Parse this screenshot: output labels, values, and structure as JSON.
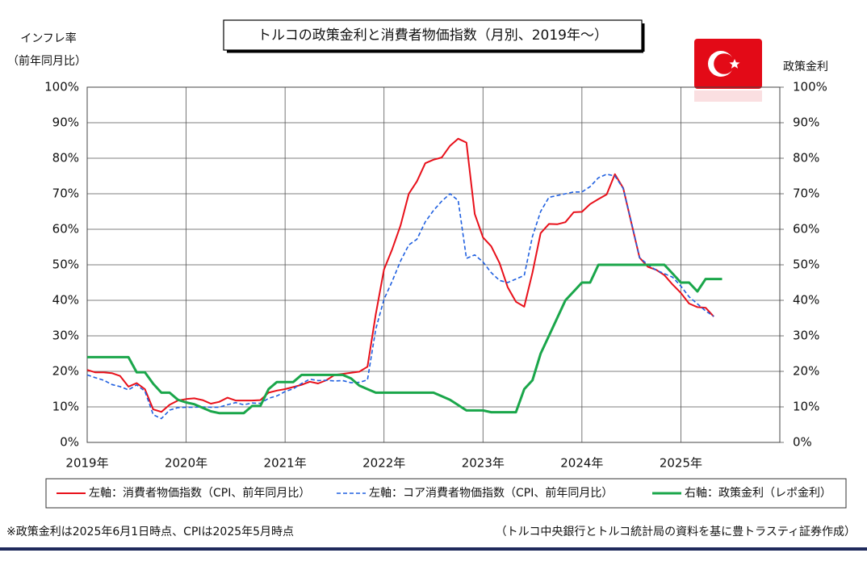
{
  "chart_data": {
    "type": "line",
    "title": "トルコの政策金利と消費者物価指数（月別、2019年～）",
    "y_label_lines": [
      "インフレ率",
      "（前年同月比）"
    ],
    "y2_label": "政策金利",
    "note": "※政策金利は2025年6月1日時点、CPIは2025年5月時点",
    "source": "（トルコ中央銀行とトルコ統計局の資料を基に豊トラスティ証券作成）",
    "x": [
      2019,
      2019.083,
      2019.167,
      2019.25,
      2019.333,
      2019.417,
      2019.5,
      2019.583,
      2019.667,
      2019.75,
      2019.833,
      2019.917,
      2020,
      2020.083,
      2020.167,
      2020.25,
      2020.333,
      2020.417,
      2020.5,
      2020.583,
      2020.667,
      2020.75,
      2020.833,
      2020.917,
      2021,
      2021.083,
      2021.167,
      2021.25,
      2021.333,
      2021.417,
      2021.5,
      2021.583,
      2021.667,
      2021.75,
      2021.833,
      2021.917,
      2022,
      2022.083,
      2022.167,
      2022.25,
      2022.333,
      2022.417,
      2022.5,
      2022.583,
      2022.667,
      2022.75,
      2022.833,
      2022.917,
      2023,
      2023.083,
      2023.167,
      2023.25,
      2023.333,
      2023.417,
      2023.5,
      2023.583,
      2023.667,
      2023.75,
      2023.833,
      2023.917,
      2024,
      2024.083,
      2024.167,
      2024.25,
      2024.333,
      2024.417,
      2024.5,
      2024.583,
      2024.667,
      2024.75,
      2024.833,
      2024.917,
      2025,
      2025.083,
      2025.167,
      2025.25,
      2025.333,
      2025.417
    ],
    "xlim": [
      2019,
      2026
    ],
    "xticks": [
      {
        "value": 2019,
        "label": "2019年"
      },
      {
        "value": 2020,
        "label": "2020年"
      },
      {
        "value": 2021,
        "label": "2021年"
      },
      {
        "value": 2022,
        "label": "2022年"
      },
      {
        "value": 2023,
        "label": "2023年"
      },
      {
        "value": 2024,
        "label": "2024年"
      },
      {
        "value": 2025,
        "label": "2025年"
      }
    ],
    "ylim": [
      0,
      100
    ],
    "yticks": [
      {
        "value": 0,
        "label": "0%"
      },
      {
        "value": 10,
        "label": "10%"
      },
      {
        "value": 20,
        "label": "20%"
      },
      {
        "value": 30,
        "label": "30%"
      },
      {
        "value": 40,
        "label": "40%"
      },
      {
        "value": 50,
        "label": "50%"
      },
      {
        "value": 60,
        "label": "60%"
      },
      {
        "value": 70,
        "label": "70%"
      },
      {
        "value": 80,
        "label": "80%"
      },
      {
        "value": 90,
        "label": "90%"
      },
      {
        "value": 100,
        "label": "100%"
      }
    ],
    "y2lim": [
      0,
      100
    ],
    "y2ticks": [
      {
        "value": 0,
        "label": "0%"
      },
      {
        "value": 10,
        "label": "10%"
      },
      {
        "value": 20,
        "label": "20%"
      },
      {
        "value": 30,
        "label": "30%"
      },
      {
        "value": 40,
        "label": "40%"
      },
      {
        "value": 50,
        "label": "50%"
      },
      {
        "value": 60,
        "label": "60%"
      },
      {
        "value": 70,
        "label": "70%"
      },
      {
        "value": 80,
        "label": "80%"
      },
      {
        "value": 90,
        "label": "90%"
      },
      {
        "value": 100,
        "label": "100%"
      }
    ],
    "grid": true,
    "series": [
      {
        "name": "左軸：消費者物価指数（CPI、前年同月比）",
        "color": "#e8101a",
        "dashed": false,
        "width": 2,
        "values": [
          20.4,
          19.7,
          19.7,
          19.5,
          18.7,
          15.7,
          16.7,
          15.0,
          9.3,
          8.6,
          10.6,
          11.8,
          12.2,
          12.4,
          11.9,
          10.9,
          11.4,
          12.6,
          11.8,
          11.8,
          11.8,
          11.9,
          14.0,
          14.6,
          15.0,
          15.6,
          16.2,
          17.1,
          16.6,
          17.5,
          19.0,
          19.3,
          19.6,
          19.9,
          21.3,
          36.1,
          48.7,
          54.4,
          61.1,
          70.0,
          73.5,
          78.6,
          79.6,
          80.2,
          83.5,
          85.5,
          84.4,
          64.3,
          57.7,
          55.2,
          50.5,
          43.7,
          39.6,
          38.2,
          47.8,
          58.9,
          61.5,
          61.4,
          62.0,
          64.8,
          64.9,
          67.1,
          68.5,
          69.8,
          75.5,
          71.6,
          61.8,
          52.0,
          49.4,
          48.6,
          47.1,
          44.4,
          42.1,
          39.1,
          38.1,
          37.9,
          35.4,
          null
        ]
      },
      {
        "name": "左軸：コア消費者物価指数（CPI、前年同月比）",
        "color": "#2060e0",
        "dashed": true,
        "width": 1.6,
        "values": [
          19.0,
          18.2,
          17.5,
          16.3,
          15.7,
          14.8,
          16.2,
          14.4,
          7.8,
          6.7,
          9.1,
          9.8,
          9.9,
          9.9,
          10.0,
          9.9,
          9.9,
          10.6,
          11.2,
          10.6,
          11.1,
          11.0,
          12.4,
          13.1,
          14.3,
          15.1,
          16.6,
          17.8,
          17.4,
          17.5,
          17.3,
          17.4,
          16.8,
          16.9,
          17.6,
          31.9,
          40.3,
          45.4,
          51.1,
          55.6,
          57.2,
          62.1,
          65.3,
          67.9,
          70.0,
          68.1,
          51.8,
          52.8,
          50.8,
          47.8,
          45.6,
          45.0,
          46.0,
          47.0,
          58.0,
          65.0,
          69.0,
          69.5,
          70.0,
          70.5,
          70.5,
          72.0,
          74.5,
          75.5,
          75.0,
          71.5,
          62.0,
          52.0,
          50.0,
          48.5,
          47.5,
          46.5,
          44.0,
          41.0,
          39.0,
          37.0,
          35.5,
          null
        ]
      },
      {
        "name": "右軸：政策金利（レポ金利）",
        "color": "#1aa64a",
        "dashed": false,
        "width": 3,
        "axis": "y2",
        "values": [
          24,
          24,
          24,
          24,
          24,
          24,
          19.75,
          19.75,
          16.5,
          14,
          14,
          12,
          11.25,
          10.75,
          9.75,
          8.75,
          8.25,
          8.25,
          8.25,
          8.25,
          10.25,
          10.25,
          15,
          17,
          17,
          17,
          19,
          19,
          19,
          19,
          19,
          19,
          18,
          16,
          15,
          14,
          14,
          14,
          14,
          14,
          14,
          14,
          14,
          13,
          12,
          10.5,
          9,
          9,
          9,
          8.5,
          8.5,
          8.5,
          8.5,
          15,
          17.5,
          25,
          30,
          35,
          40,
          42.5,
          45,
          45,
          50,
          50,
          50,
          50,
          50,
          50,
          50,
          50,
          50,
          47.5,
          45,
          45,
          42.5,
          46,
          46,
          46
        ]
      }
    ]
  }
}
